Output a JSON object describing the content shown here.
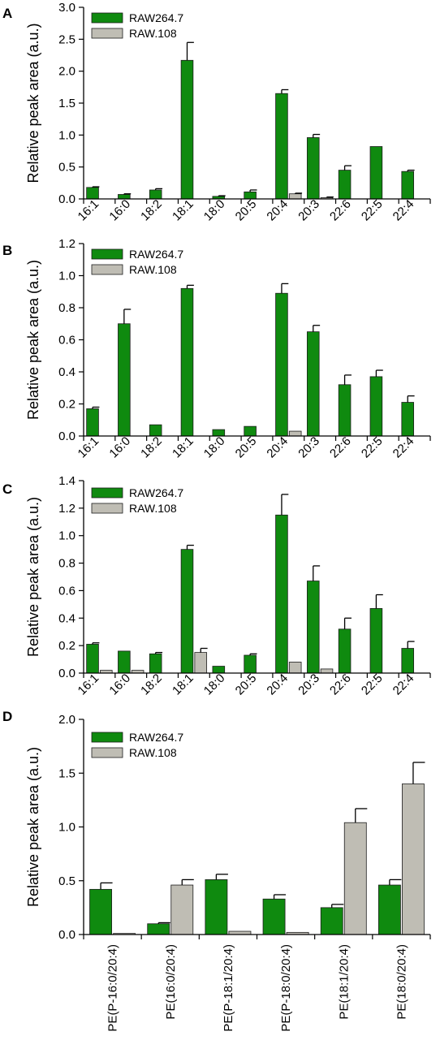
{
  "colors": {
    "raw264": "#0f8a0f",
    "raw108": "#bfbdb4"
  },
  "chart_data": [
    {
      "type": "bar",
      "panel": "A",
      "ylabel": "Relative peak area (a.u.)",
      "ylim": [
        0,
        3.0
      ],
      "yticks": [
        "0.0",
        "0.5",
        "1.0",
        "1.5",
        "2.0",
        "2.5",
        "3.0"
      ],
      "categories": [
        "16:1",
        "16:0",
        "18:2",
        "18:1",
        "18:0",
        "20:5",
        "20:4",
        "20:3",
        "22:6",
        "22:5",
        "22:4"
      ],
      "legend": {
        "position": "top-left"
      },
      "series": [
        {
          "name": "RAW264.7",
          "values": [
            0.18,
            0.07,
            0.14,
            2.17,
            0.04,
            0.11,
            1.65,
            0.96,
            0.45,
            0.82,
            0.43
          ],
          "errors": [
            0.01,
            0.01,
            0.02,
            0.28,
            0.01,
            0.03,
            0.06,
            0.05,
            0.07,
            0.0,
            0.02
          ]
        },
        {
          "name": "RAW.108",
          "values": [
            0,
            0,
            0,
            0,
            0,
            0,
            0.08,
            0.02,
            0,
            0,
            0
          ],
          "errors": [
            0,
            0,
            0,
            0,
            0,
            0,
            0.01,
            0.01,
            0,
            0,
            0
          ]
        }
      ]
    },
    {
      "type": "bar",
      "panel": "B",
      "ylabel": "Relative peak area (a.u.)",
      "ylim": [
        0,
        1.2
      ],
      "yticks": [
        "0.0",
        "0.2",
        "0.4",
        "0.6",
        "0.8",
        "1.0",
        "1.2"
      ],
      "categories": [
        "16:1",
        "16:0",
        "18:2",
        "18:1",
        "18:0",
        "20:5",
        "20:4",
        "20:3",
        "22:6",
        "22:5",
        "22:4"
      ],
      "legend": {
        "position": "top-left"
      },
      "series": [
        {
          "name": "RAW264.7",
          "values": [
            0.17,
            0.7,
            0.07,
            0.92,
            0.04,
            0.06,
            0.89,
            0.65,
            0.32,
            0.37,
            0.21
          ],
          "errors": [
            0.01,
            0.09,
            0.0,
            0.02,
            0.0,
            0.0,
            0.06,
            0.04,
            0.06,
            0.04,
            0.04
          ]
        },
        {
          "name": "RAW.108",
          "values": [
            0,
            0,
            0,
            0,
            0,
            0,
            0.03,
            0,
            0,
            0,
            0
          ],
          "errors": [
            0,
            0,
            0,
            0,
            0,
            0,
            0,
            0,
            0,
            0,
            0
          ]
        }
      ]
    },
    {
      "type": "bar",
      "panel": "C",
      "ylabel": "Relative peak area (a.u.)",
      "ylim": [
        0,
        1.4
      ],
      "yticks": [
        "0.0",
        "0.2",
        "0.4",
        "0.6",
        "0.8",
        "1.0",
        "1.2",
        "1.4"
      ],
      "categories": [
        "16:1",
        "16:0",
        "18:2",
        "18:1",
        "18:0",
        "20:5",
        "20:4",
        "20:3",
        "22:6",
        "22:5",
        "22:4"
      ],
      "legend": {
        "position": "top-left"
      },
      "series": [
        {
          "name": "RAW264.7",
          "values": [
            0.21,
            0.16,
            0.14,
            0.9,
            0.05,
            0.13,
            1.15,
            0.67,
            0.32,
            0.47,
            0.18
          ],
          "errors": [
            0.01,
            0.0,
            0.01,
            0.03,
            0.0,
            0.01,
            0.15,
            0.11,
            0.08,
            0.1,
            0.05
          ]
        },
        {
          "name": "RAW.108",
          "values": [
            0.02,
            0.02,
            0,
            0.15,
            0,
            0,
            0.08,
            0.03,
            0,
            0,
            0
          ],
          "errors": [
            0,
            0,
            0,
            0.03,
            0,
            0,
            0,
            0,
            0,
            0,
            0
          ]
        }
      ]
    },
    {
      "type": "bar",
      "panel": "D",
      "ylabel": "Relative peak area (a.u.)",
      "ylim": [
        0,
        2.0
      ],
      "yticks": [
        "0.0",
        "0.5",
        "1.0",
        "1.5",
        "2.0"
      ],
      "categories": [
        "PE(P-16:0/20:4)",
        "PE(16:0/20:4)",
        "PE(P-18:1/20:4)",
        "PE(P-18:0/20:4)",
        "PE(18:1/20:4)",
        "PE(18:0/20:4)"
      ],
      "legend": {
        "position": "top-left"
      },
      "series": [
        {
          "name": "RAW264.7",
          "values": [
            0.42,
            0.1,
            0.51,
            0.33,
            0.25,
            0.46
          ],
          "errors": [
            0.06,
            0.01,
            0.05,
            0.04,
            0.03,
            0.05
          ]
        },
        {
          "name": "RAW.108",
          "values": [
            0.01,
            0.46,
            0.03,
            0.02,
            1.04,
            1.4
          ],
          "errors": [
            0.0,
            0.05,
            0.0,
            0.0,
            0.13,
            0.2
          ]
        }
      ]
    }
  ]
}
